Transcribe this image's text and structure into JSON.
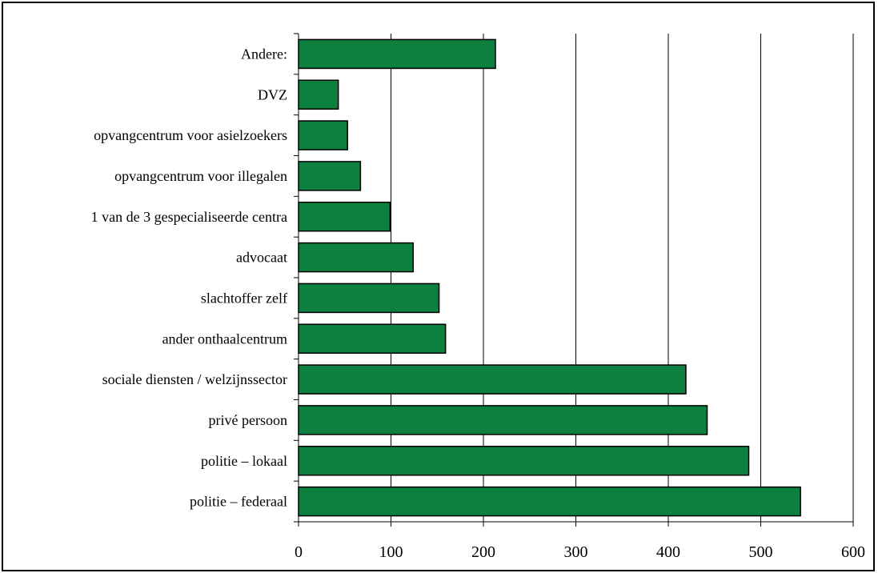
{
  "chart_data": {
    "type": "bar",
    "orientation": "horizontal",
    "title": "",
    "xlabel": "",
    "ylabel": "",
    "categories": [
      "Andere:",
      "DVZ",
      "opvangcentrum voor asielzoekers",
      "opvangcentrum voor illegalen",
      "1 van de 3 gespecialiseerde centra",
      "advocaat",
      "slachtoffer zelf",
      "ander onthaalcentrum",
      "sociale diensten / welzijnssector",
      "privé persoon",
      "politie – lokaal",
      "politie – federaal"
    ],
    "values": [
      213,
      43,
      53,
      67,
      99,
      124,
      152,
      159,
      419,
      442,
      487,
      543
    ],
    "xlim": [
      0,
      600
    ],
    "ticks": [
      "0",
      "100",
      "200",
      "300",
      "400",
      "500",
      "600"
    ],
    "grid": "vertical",
    "legend": "none",
    "bar_color": "#0d7f3f"
  }
}
